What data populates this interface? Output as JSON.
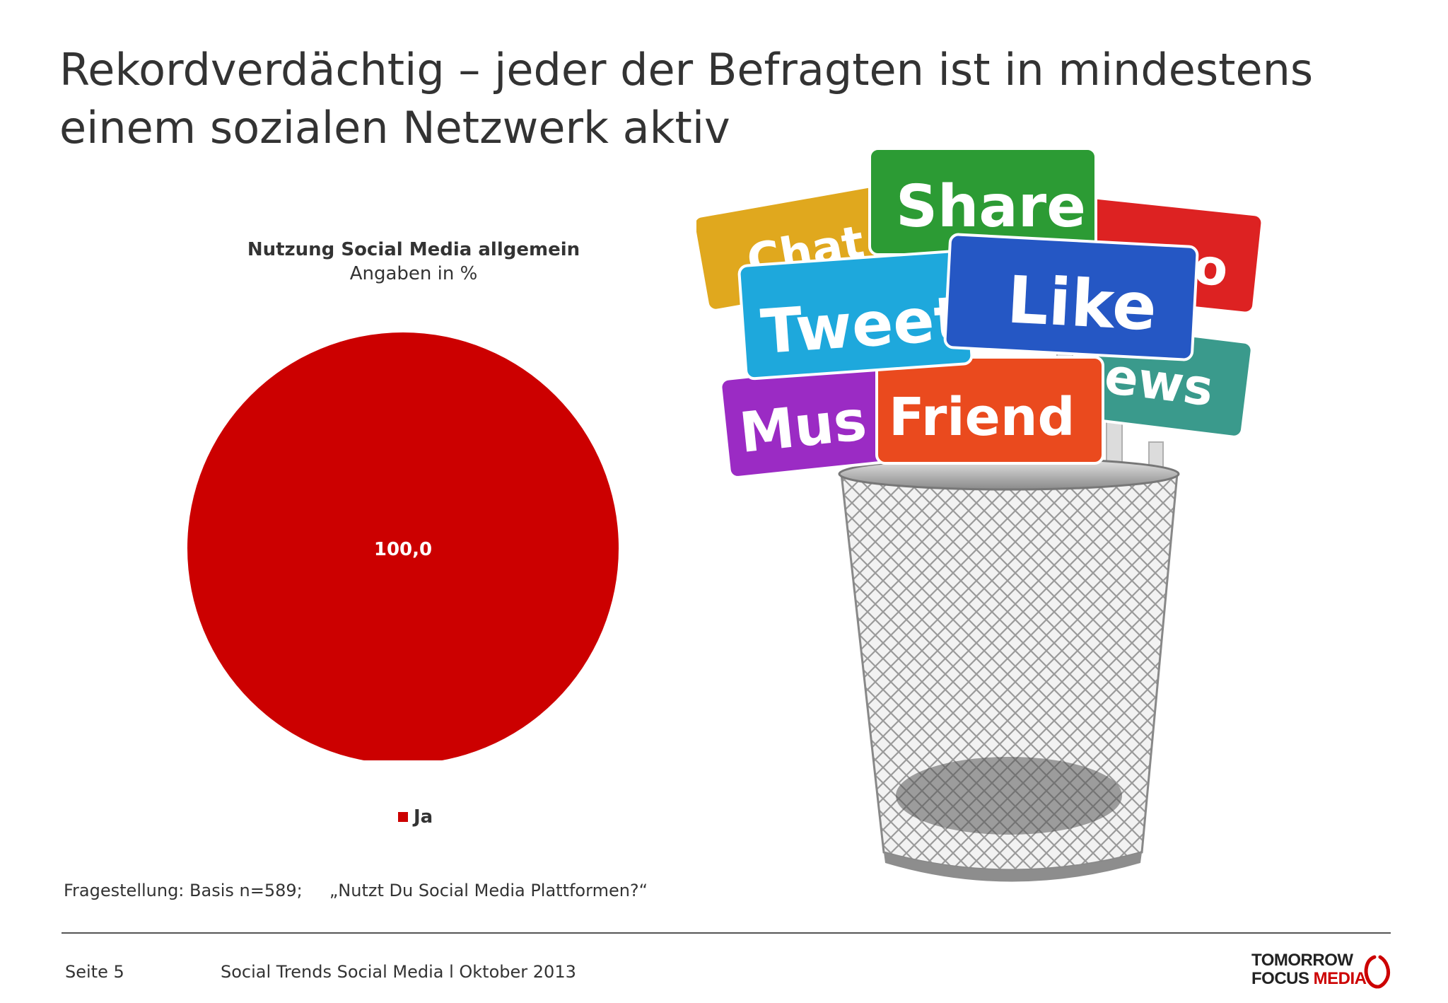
{
  "slide": {
    "title": "Rekordverdächtig – jeder der Befragten ist in mindestens einem sozialen Netzwerk aktiv",
    "question": "Fragestellung: Basis n=589;     „Nutzt Du Social Media Plattformen?“",
    "footer": {
      "page": "Seite 5",
      "source": "Social Trends Social Media l Oktober 2013"
    },
    "logo": {
      "line1": "TOMORROW",
      "line2a": "FOCUS ",
      "line2b": "MEDIA"
    }
  },
  "chart_data": {
    "type": "pie",
    "title": "Nutzung Social Media allgemein",
    "subtitle": "Angaben in %",
    "categories": [
      "Ja"
    ],
    "values": [
      100.0
    ],
    "data_labels": [
      "100,0"
    ],
    "colors": [
      "#cc0000"
    ],
    "legend": "bottom"
  },
  "image_signs": {
    "share": "Share",
    "tweet": "Tweet",
    "like": "Like",
    "friend": "Friend",
    "chat": "Chat",
    "music": "Mus",
    "news": "ews",
    "photo": "o"
  }
}
